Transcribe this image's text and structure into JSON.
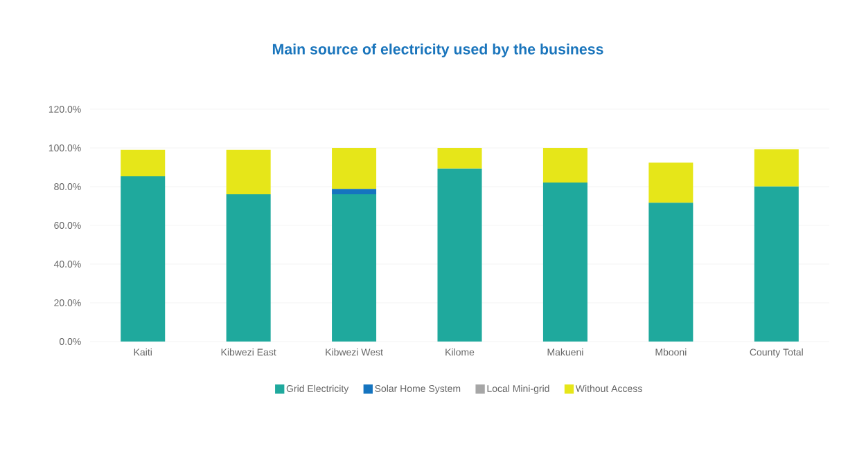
{
  "chart_data": {
    "type": "bar",
    "title": "Main source of electricity used by the business",
    "categories": [
      "Kaiti",
      "Kibwezi East",
      "Kibwezi West",
      "Kilome",
      "Makueni",
      "Mbooni",
      "County Total"
    ],
    "stacked": true,
    "series": [
      {
        "name": "Grid Electricity",
        "color": "#1fa99d",
        "values": [
          85.4,
          76.1,
          76.1,
          89.4,
          82.1,
          71.7,
          80.1
        ]
      },
      {
        "name": "Solar Home System",
        "color": "#1574bf",
        "values": [
          0,
          0,
          2.7,
          0,
          0,
          0,
          0
        ]
      },
      {
        "name": "Local Mini-grid",
        "color": "#a6a6a6",
        "values": [
          0,
          0,
          0,
          0,
          0,
          0,
          0
        ]
      },
      {
        "name": "Without Access",
        "color": "#e6e619",
        "values": [
          13.6,
          22.9,
          21.2,
          10.6,
          17.9,
          20.7,
          19.2
        ]
      }
    ],
    "ylim": [
      0,
      120
    ],
    "yticks": [
      {
        "value": 0,
        "label": "0.0%"
      },
      {
        "value": 20,
        "label": "20.0%"
      },
      {
        "value": 40,
        "label": "40.0%"
      },
      {
        "value": 60,
        "label": "60.0%"
      },
      {
        "value": 80,
        "label": "80.0%"
      },
      {
        "value": 100,
        "label": "100.0%"
      },
      {
        "value": 120,
        "label": "120.0%"
      }
    ],
    "grid": "y",
    "legend": "bottom"
  }
}
